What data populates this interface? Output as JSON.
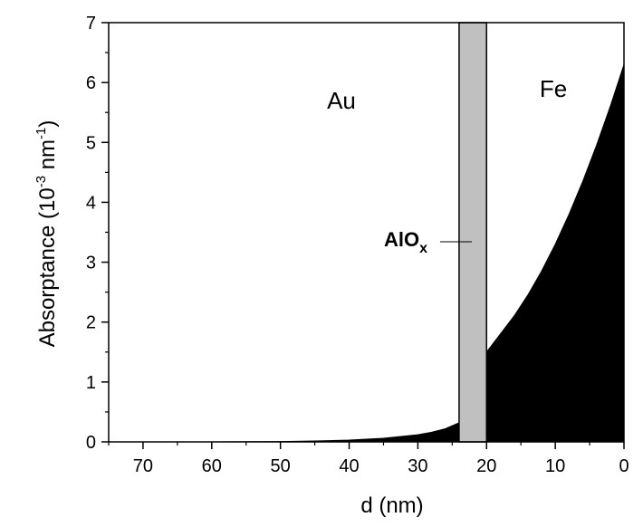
{
  "chart_data": {
    "type": "area",
    "xlabel": "d (nm)",
    "ylabel_main": "Absorptance (10",
    "ylabel_exp1": "-3",
    "ylabel_mid": " nm",
    "ylabel_exp2": "-1",
    "ylabel_end": ")",
    "xlim": [
      75,
      0
    ],
    "ylim": [
      0,
      7
    ],
    "x_ticks": [
      70,
      60,
      50,
      40,
      30,
      20,
      10,
      0
    ],
    "y_ticks": [
      0,
      1,
      2,
      3,
      4,
      5,
      6,
      7
    ],
    "grid": false,
    "legend": "none",
    "regions": {
      "au_label": "Au",
      "fe_label": "Fe",
      "spacer_label_main": "AlO",
      "spacer_label_sub": "x",
      "spacer_range": [
        20,
        24
      ],
      "spacer_color": "#c0c0c0"
    },
    "series": [
      {
        "region": "Au",
        "x": [
          75,
          70,
          60,
          50,
          45,
          40,
          35,
          30,
          28,
          26,
          24
        ],
        "y": [
          0.0,
          0.0,
          0.0,
          0.005,
          0.015,
          0.03,
          0.06,
          0.12,
          0.16,
          0.22,
          0.32
        ]
      },
      {
        "region": "Fe",
        "x": [
          20,
          18,
          16,
          14,
          12,
          10,
          8,
          6,
          4,
          2,
          0
        ],
        "y": [
          1.5,
          1.8,
          2.1,
          2.45,
          2.85,
          3.3,
          3.8,
          4.35,
          4.95,
          5.6,
          6.3
        ]
      }
    ],
    "fill_color": "#000000"
  }
}
